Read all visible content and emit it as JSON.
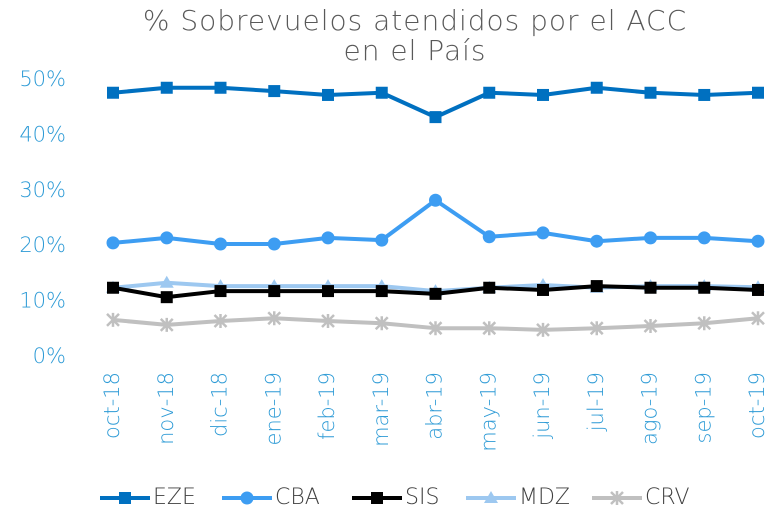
{
  "chart_data": {
    "type": "line",
    "title": [
      "% Sobrevuelos atendidos por el ACC",
      "en el País"
    ],
    "categories": [
      "oct-18",
      "nov-18",
      "dic-18",
      "ene-19",
      "feb-19",
      "mar-19",
      "abr-19",
      "may-19",
      "jun-19",
      "jul-19",
      "ago-19",
      "sep-19",
      "oct-19"
    ],
    "ylim": [
      0,
      50
    ],
    "yticks": [
      {
        "value": 0,
        "label": "0%"
      },
      {
        "value": 10,
        "label": "10%"
      },
      {
        "value": 20,
        "label": "20%"
      },
      {
        "value": 30,
        "label": "30%"
      },
      {
        "value": 40,
        "label": "40%"
      },
      {
        "value": 50,
        "label": "50%"
      }
    ],
    "grid": false,
    "legend": "bottom",
    "series": [
      {
        "name": "EZE",
        "color": "#0070c0",
        "marker": "square",
        "values": [
          47.7,
          48.6,
          48.6,
          48.0,
          47.3,
          47.7,
          43.3,
          47.7,
          47.3,
          48.6,
          47.7,
          47.3,
          47.7
        ]
      },
      {
        "name": "CBA",
        "color": "#3d9df2",
        "marker": "circle",
        "values": [
          20.6,
          21.5,
          20.4,
          20.4,
          21.5,
          21.1,
          28.3,
          21.7,
          22.4,
          20.9,
          21.5,
          21.5,
          20.9
        ]
      },
      {
        "name": "SIS",
        "color": "#000000",
        "marker": "square",
        "values": [
          12.5,
          10.8,
          11.9,
          11.9,
          11.9,
          11.9,
          11.4,
          12.5,
          12.1,
          12.8,
          12.5,
          12.5,
          12.1
        ]
      },
      {
        "name": "MDZ",
        "color": "#9dc8f0",
        "marker": "triangle",
        "values": [
          12.5,
          13.4,
          12.8,
          12.8,
          12.8,
          12.8,
          11.9,
          12.5,
          13.0,
          12.5,
          12.8,
          12.8,
          12.6
        ]
      },
      {
        "name": "CRV",
        "color": "#c0c0c0",
        "marker": "star",
        "values": [
          6.7,
          5.8,
          6.5,
          7.0,
          6.5,
          6.1,
          5.2,
          5.2,
          4.9,
          5.2,
          5.6,
          6.1,
          7.0
        ]
      }
    ]
  }
}
